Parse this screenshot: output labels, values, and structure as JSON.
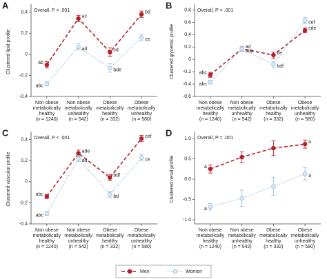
{
  "chart_data": [
    {
      "type": "line",
      "panel": "A",
      "annotation": "Overall, P < .001",
      "ylabel": "Clustered lipid profile",
      "categories": [
        [
          "Non obese",
          "metabolically",
          "healthy",
          "(n = 1240)"
        ],
        [
          "Non obese",
          "metabolically",
          "unhealthy",
          "(n = 542)"
        ],
        [
          "Obese",
          "metabolically",
          "healthy",
          "(n = 332)"
        ],
        [
          "Obese",
          "metabolically",
          "unhealthy",
          "(n = 580)"
        ]
      ],
      "ylim": [
        -0.4,
        0.45
      ],
      "yticks": [
        -0.4,
        -0.2,
        0,
        0.2,
        0.4
      ],
      "series": [
        {
          "name": "Men",
          "color": "#b5202a",
          "linestyle": "dashed",
          "values": [
            -0.1,
            0.34,
            0.02,
            0.38
          ],
          "errors": [
            0.03,
            0.03,
            0.04,
            0.03
          ],
          "point_labels": [
            "ab",
            "ac",
            "cd",
            "bd"
          ]
        },
        {
          "name": "Women",
          "color": "#9cc3e0",
          "linestyle": "dotted",
          "values": [
            -0.28,
            0.07,
            -0.13,
            0.16
          ],
          "errors": [
            0.02,
            0.03,
            0.04,
            0.03
          ],
          "point_labels": [
            "abc",
            "ad",
            "bde",
            "ce"
          ]
        }
      ]
    },
    {
      "type": "line",
      "panel": "B",
      "annotation": "Overall, P < .001",
      "ylabel": "Clustered glycemic profile",
      "categories": [
        [
          "Non obese",
          "metabolically",
          "healthy",
          "(n = 1240)"
        ],
        [
          "Non obese",
          "metabolically",
          "unhealthy",
          "(n = 542)"
        ],
        [
          "Obese",
          "metabolically",
          "healthy",
          "(n = 332)"
        ],
        [
          "Obese",
          "metabolically",
          "unhealthy",
          "(n = 580)"
        ]
      ],
      "ylim": [
        -0.6,
        0.85
      ],
      "yticks": [
        -0.6,
        -0.4,
        -0.2,
        0,
        0.2,
        0.4,
        0.6,
        0.8
      ],
      "series": [
        {
          "name": "Men",
          "color": "#b5202a",
          "linestyle": "dashed",
          "values": [
            -0.25,
            0.17,
            0.07,
            0.47
          ],
          "errors": [
            0.04,
            0.04,
            0.05,
            0.04
          ],
          "point_labels": [
            "abc",
            "ad",
            "be",
            "cde"
          ]
        },
        {
          "name": "Women",
          "color": "#9cc3e0",
          "linestyle": "dotted",
          "values": [
            -0.37,
            0.17,
            -0.08,
            0.63
          ],
          "errors": [
            0.03,
            0.04,
            0.05,
            0.05
          ],
          "point_labels": [
            "abc",
            "ade",
            "bdf",
            "cef"
          ]
        }
      ]
    },
    {
      "type": "line",
      "panel": "C",
      "annotation": "Overall, P < .001",
      "ylabel": "Clustered vascular profile",
      "categories": [
        [
          "Non obese",
          "metabolically",
          "healthy",
          "(n = 1240)"
        ],
        [
          "Non obese",
          "metabolically",
          "unhealthy",
          "(n = 542)"
        ],
        [
          "Obese",
          "metabolically",
          "healthy",
          "(n = 332)"
        ],
        [
          "Obese",
          "metabolically",
          "unhealthy",
          "(n = 580)"
        ]
      ],
      "ylim": [
        -0.4,
        0.45
      ],
      "yticks": [
        -0.4,
        -0.2,
        0,
        0.2,
        0.4
      ],
      "series": [
        {
          "name": "Men",
          "color": "#b5202a",
          "linestyle": "dashed",
          "values": [
            -0.14,
            0.27,
            0.04,
            0.41
          ],
          "errors": [
            0.02,
            0.03,
            0.03,
            0.03
          ],
          "point_labels": [
            "abc",
            "ade",
            "bdf",
            "cef"
          ]
        },
        {
          "name": "Women",
          "color": "#9cc3e0",
          "linestyle": "dotted",
          "values": [
            -0.3,
            0.22,
            -0.12,
            0.23
          ],
          "errors": [
            0.02,
            0.03,
            0.03,
            0.03
          ],
          "point_labels": [
            "abc",
            "ad",
            "bd",
            "ce"
          ]
        }
      ]
    },
    {
      "type": "line",
      "panel": "D",
      "annotation": "Overall, P = .001",
      "ylabel": "Clustered renal profile",
      "categories": [
        [
          "Non obese",
          "metabolically",
          "healthy",
          "(n = 1240)"
        ],
        [
          "Non obese",
          "metabolically",
          "unhealthy",
          "(n = 542)"
        ],
        [
          "Obese",
          "metabolically",
          "healthy",
          "(n = 332)"
        ],
        [
          "Obese",
          "metabolically",
          "unhealthy",
          "(n = 580)"
        ]
      ],
      "ylim": [
        -1.1,
        1.1
      ],
      "yticks": [
        {
          "value": -1,
          "label": "-1.0"
        },
        -0.5,
        {
          "value": 0,
          "label": "0.0"
        },
        0.5,
        {
          "value": 1,
          "label": "1.0"
        }
      ],
      "series": [
        {
          "name": "Men",
          "color": "#b5202a",
          "linestyle": "dashed",
          "values": [
            0.25,
            0.54,
            0.76,
            0.86
          ],
          "errors": [
            0.1,
            0.13,
            0.18,
            0.1
          ],
          "point_labels": [
            "a",
            null,
            null,
            "a"
          ]
        },
        {
          "name": "Women",
          "color": "#9cc3e0",
          "linestyle": "dotted",
          "values": [
            -0.68,
            -0.47,
            -0.18,
            0.13
          ],
          "errors": [
            0.08,
            0.2,
            0.22,
            0.15
          ],
          "point_labels": [
            "a",
            null,
            null,
            "a"
          ]
        }
      ]
    }
  ]
}
